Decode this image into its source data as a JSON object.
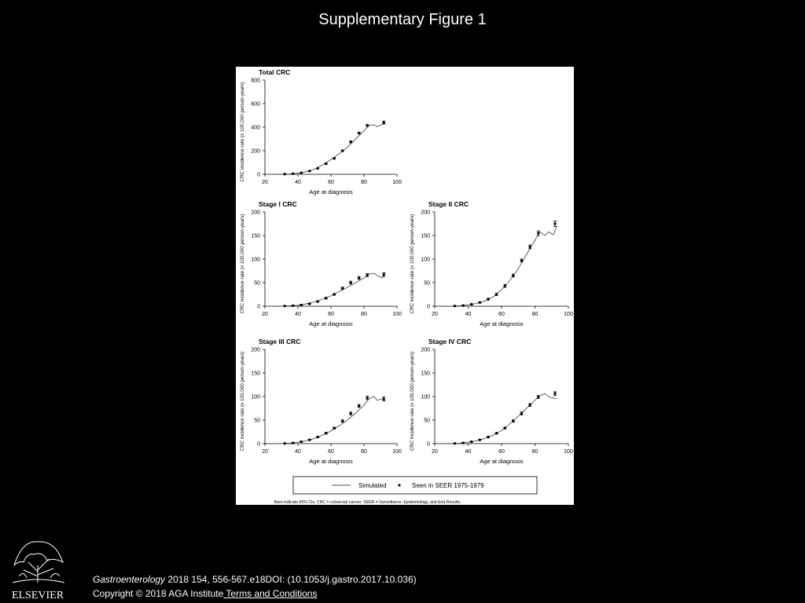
{
  "slide": {
    "title": "Supplementary Figure 1",
    "citation_journal": "Gastroenterology",
    "citation_rest": " 2018 154, 556-567.e18DOI: (10.1053/j.gastro.2017.10.036)",
    "copyright": "Copyright © 2018 AGA Institute",
    "terms_link": " Terms and Conditions",
    "publisher": "ELSEVIER"
  },
  "figure": {
    "legend": {
      "simulated": "Simulated",
      "observed": "Seen in SEER 1975-1979",
      "position": "bottom-center"
    },
    "footnote": "Bars indicate 95% CIs. CRC = colorectal cancer; SEER = Surveillance, Epidemiology, and End Results."
  },
  "chart_data": [
    {
      "type": "line",
      "title": "Total CRC",
      "xlabel": "Age at diagnosis",
      "ylabel": "CRC incidence rate (x 100,000 person-years)",
      "xlim": [
        20,
        100
      ],
      "ylim": [
        0,
        800
      ],
      "xticks": [
        20,
        40,
        60,
        80,
        100
      ],
      "yticks": [
        0,
        200,
        400,
        600,
        800
      ],
      "grid": false,
      "series": [
        {
          "name": "Simulated",
          "kind": "line",
          "x": [
            30,
            35,
            40,
            45,
            50,
            55,
            60,
            65,
            70,
            75,
            80,
            83,
            86,
            88,
            91,
            93
          ],
          "y": [
            0,
            3,
            10,
            22,
            45,
            80,
            125,
            175,
            230,
            300,
            370,
            415,
            420,
            405,
            425,
            430
          ]
        },
        {
          "name": "Seen in SEER 1975-1979",
          "kind": "points_with_error",
          "x": [
            32,
            37,
            42,
            47,
            52,
            57,
            62,
            67,
            72,
            77,
            82,
            92
          ],
          "y": [
            2,
            5,
            13,
            28,
            50,
            90,
            135,
            200,
            275,
            350,
            415,
            440
          ],
          "err": [
            1,
            1,
            2,
            3,
            4,
            5,
            6,
            7,
            8,
            8,
            9,
            12
          ]
        }
      ]
    },
    {
      "type": "line",
      "title": "Stage I CRC",
      "xlabel": "Age at diagnosis",
      "ylabel": "CRC incidence rate (x 100,000 person-years)",
      "xlim": [
        20,
        100
      ],
      "ylim": [
        0,
        200
      ],
      "xticks": [
        20,
        40,
        60,
        80,
        100
      ],
      "yticks": [
        0,
        50,
        100,
        150,
        200
      ],
      "grid": false,
      "series": [
        {
          "name": "Simulated",
          "kind": "line",
          "x": [
            30,
            35,
            40,
            45,
            50,
            55,
            60,
            65,
            70,
            75,
            80,
            83,
            86,
            88,
            91,
            93
          ],
          "y": [
            0,
            1,
            2,
            5,
            9,
            15,
            22,
            31,
            40,
            50,
            60,
            68,
            70,
            65,
            60,
            72
          ]
        },
        {
          "name": "Seen in SEER 1975-1979",
          "kind": "points_with_error",
          "x": [
            32,
            37,
            42,
            47,
            52,
            57,
            62,
            67,
            72,
            77,
            82,
            92
          ],
          "y": [
            0.5,
            1,
            2.5,
            5,
            10,
            17,
            25,
            38,
            50,
            60,
            66,
            67
          ],
          "err": [
            0.3,
            0.5,
            0.8,
            1,
            1.5,
            2,
            2,
            2.5,
            3,
            3,
            3,
            4
          ]
        }
      ]
    },
    {
      "type": "line",
      "title": "Stage II CRC",
      "xlabel": "Age at diagnosis",
      "ylabel": "CRC incidence rate (x 100,000 person-years)",
      "xlim": [
        20,
        100
      ],
      "ylim": [
        0,
        200
      ],
      "xticks": [
        20,
        40,
        60,
        80,
        100
      ],
      "yticks": [
        0,
        50,
        100,
        150,
        200
      ],
      "grid": false,
      "series": [
        {
          "name": "Simulated",
          "kind": "line",
          "x": [
            30,
            35,
            40,
            45,
            50,
            55,
            60,
            65,
            70,
            75,
            80,
            83,
            86,
            88,
            91,
            93
          ],
          "y": [
            0,
            1,
            3,
            6,
            11,
            20,
            35,
            55,
            80,
            110,
            140,
            158,
            150,
            158,
            152,
            170
          ]
        },
        {
          "name": "Seen in SEER 1975-1979",
          "kind": "points_with_error",
          "x": [
            32,
            37,
            42,
            47,
            52,
            57,
            62,
            67,
            72,
            77,
            82,
            92
          ],
          "y": [
            0.5,
            1.5,
            4,
            8,
            15,
            25,
            43,
            65,
            97,
            126,
            155,
            175
          ],
          "err": [
            0.3,
            0.5,
            1,
            1.5,
            2,
            2.5,
            3,
            3,
            3,
            4,
            5,
            6
          ]
        }
      ]
    },
    {
      "type": "line",
      "title": "Stage III CRC",
      "xlabel": "Age at diagnosis",
      "ylabel": "CRC incidence rate (x 100,000 person-years)",
      "xlim": [
        20,
        100
      ],
      "ylim": [
        0,
        200
      ],
      "xticks": [
        20,
        40,
        60,
        80,
        100
      ],
      "yticks": [
        0,
        50,
        100,
        150,
        200
      ],
      "grid": false,
      "series": [
        {
          "name": "Simulated",
          "kind": "line",
          "x": [
            30,
            35,
            40,
            45,
            50,
            55,
            60,
            65,
            70,
            75,
            80,
            83,
            86,
            88,
            91,
            93
          ],
          "y": [
            0,
            1,
            3,
            6,
            11,
            18,
            27,
            38,
            50,
            65,
            82,
            95,
            100,
            92,
            95,
            90
          ]
        },
        {
          "name": "Seen in SEER 1975-1979",
          "kind": "points_with_error",
          "x": [
            32,
            37,
            42,
            47,
            52,
            57,
            62,
            67,
            72,
            77,
            82,
            92
          ],
          "y": [
            0.5,
            1.5,
            4,
            8,
            14,
            22,
            33,
            48,
            64,
            80,
            97,
            95
          ],
          "err": [
            0.3,
            0.5,
            1,
            1.2,
            1.5,
            2,
            2,
            2.5,
            3,
            3,
            3.5,
            4
          ]
        }
      ]
    },
    {
      "type": "line",
      "title": "Stage IV CRC",
      "xlabel": "Age at diagnosis",
      "ylabel": "CRC incidence rate (x 100,000 person-years)",
      "xlim": [
        20,
        100
      ],
      "ylim": [
        0,
        200
      ],
      "xticks": [
        20,
        40,
        60,
        80,
        100
      ],
      "yticks": [
        0,
        50,
        100,
        150,
        200
      ],
      "grid": false,
      "series": [
        {
          "name": "Simulated",
          "kind": "line",
          "x": [
            30,
            35,
            40,
            45,
            50,
            55,
            60,
            65,
            70,
            75,
            80,
            83,
            86,
            88,
            91,
            93
          ],
          "y": [
            0,
            1,
            3,
            6,
            11,
            18,
            28,
            42,
            58,
            75,
            92,
            102,
            106,
            100,
            97,
            95
          ]
        },
        {
          "name": "Seen in SEER 1975-1979",
          "kind": "points_with_error",
          "x": [
            32,
            37,
            42,
            47,
            52,
            57,
            62,
            67,
            72,
            77,
            82,
            92
          ],
          "y": [
            0.5,
            1.5,
            4,
            8,
            14,
            22,
            33,
            48,
            64,
            82,
            99,
            106
          ],
          "err": [
            0.3,
            0.5,
            1,
            1.2,
            1.5,
            2,
            2,
            2.5,
            3,
            3,
            3,
            4
          ]
        }
      ]
    }
  ]
}
